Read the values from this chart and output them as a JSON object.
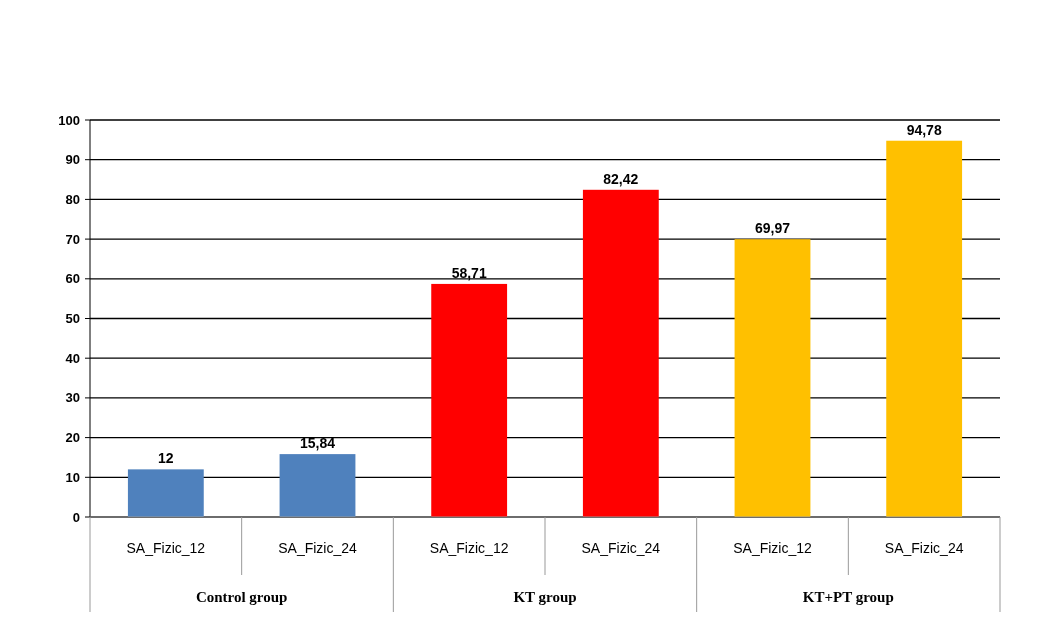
{
  "chart_data": {
    "type": "bar",
    "categories": [
      "SA_Fizic_12",
      "SA_Fizic_24",
      "SA_Fizic_12",
      "SA_Fizic_24",
      "SA_Fizic_12",
      "SA_Fizic_24"
    ],
    "values": [
      12,
      15.84,
      58.71,
      82.42,
      69.97,
      94.78
    ],
    "colors": [
      "#4f81bd",
      "#4f81bd",
      "#ff0000",
      "#ff0000",
      "#ffc000",
      "#ffc000"
    ],
    "value_labels": [
      "12",
      "15,84",
      "58,71",
      "82,42",
      "69,97",
      "94,78"
    ],
    "ylim": [
      0,
      100
    ],
    "yticks": [
      0,
      10,
      20,
      30,
      40,
      50,
      60,
      70,
      80,
      90,
      100
    ],
    "grid": "y",
    "annotations": [
      "Control group",
      "KT group",
      "KT+PT group"
    ]
  }
}
